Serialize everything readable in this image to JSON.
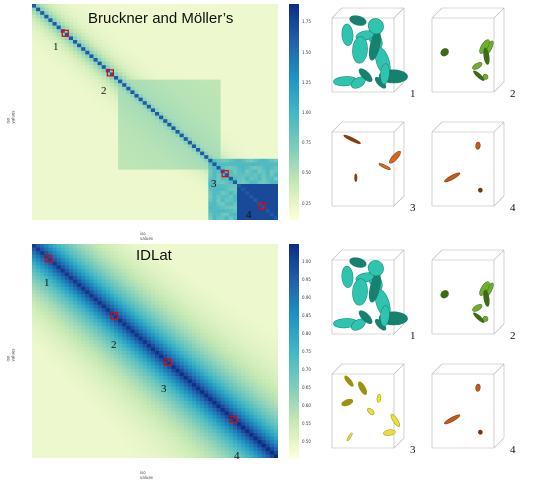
{
  "top": {
    "title": "Bruckner and Möller’s",
    "colorbar": {
      "ticks": [
        "1.75",
        "1.50",
        "1.25",
        "1.00",
        "0.75",
        "0.50",
        "0.25"
      ],
      "colors": [
        "#ffffd9",
        "#c7e9b4",
        "#7fcdbb",
        "#41b6c4",
        "#1d91c0",
        "#225ea8",
        "#0c2c84"
      ]
    },
    "xlabel": "iso values",
    "ylabel": "iso values",
    "markers": [
      "1",
      "2",
      "3",
      "4"
    ],
    "cubes": [
      {
        "label": "1",
        "icon": "teal-isosurface-dense"
      },
      {
        "label": "2",
        "icon": "green-isosurface-sparse"
      },
      {
        "label": "3",
        "icon": "orange-isosurface-few"
      },
      {
        "label": "4",
        "icon": "orange-isosurface-minimal"
      }
    ]
  },
  "bottom": {
    "title": "IDLat",
    "colorbar": {
      "ticks": [
        "1.00",
        "0.95",
        "0.90",
        "0.85",
        "0.80",
        "0.75",
        "0.70",
        "0.65",
        "0.60",
        "0.55",
        "0.50"
      ],
      "colors": [
        "#ffffd9",
        "#c7e9b4",
        "#7fcdbb",
        "#41b6c4",
        "#1d91c0",
        "#225ea8",
        "#0c2c84"
      ]
    },
    "xlabel": "iso values",
    "ylabel": "iso values",
    "markers": [
      "1",
      "2",
      "3",
      "4"
    ],
    "cubes": [
      {
        "label": "1",
        "icon": "teal-isosurface-dense"
      },
      {
        "label": "2",
        "icon": "green-isosurface-sparse"
      },
      {
        "label": "3",
        "icon": "yellow-isosurface-medium"
      },
      {
        "label": "4",
        "icon": "orange-isosurface-minimal"
      }
    ]
  }
}
